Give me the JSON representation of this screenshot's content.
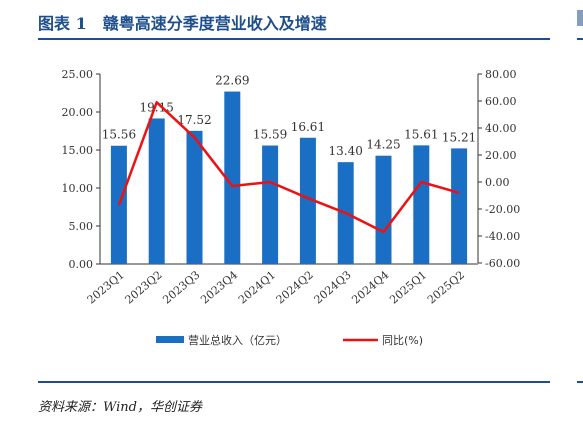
{
  "header": {
    "title": "图表 1　赣粤高速分季度营业收入及增速"
  },
  "footer": {
    "source": "资料来源：Wind，华创证券"
  },
  "colors": {
    "bar": "#1a6fc4",
    "line": "#ee1111",
    "rule": "#1f4e8c",
    "axis": "#333333"
  },
  "chart_data": {
    "type": "bar",
    "categories": [
      "2023Q1",
      "2023Q2",
      "2023Q3",
      "2023Q4",
      "2024Q1",
      "2024Q2",
      "2024Q3",
      "2024Q4",
      "2025Q1",
      "2025Q2"
    ],
    "series": [
      {
        "name": "营业总收入（亿元）",
        "type": "bar",
        "axis": "left",
        "values": [
          15.56,
          19.15,
          17.52,
          22.69,
          15.59,
          16.61,
          13.4,
          14.25,
          15.61,
          15.21
        ],
        "labels": [
          "15.56",
          "19.15",
          "17.52",
          "22.69",
          "15.59",
          "16.61",
          "13.40",
          "14.25",
          "15.61",
          "15.21"
        ]
      },
      {
        "name": "同比(%)",
        "type": "line",
        "axis": "right",
        "values": [
          -17,
          59,
          33,
          -3,
          0,
          -12,
          -23,
          -37,
          0,
          -8
        ]
      }
    ],
    "y_left": {
      "lim": [
        0,
        25
      ],
      "ticks": [
        0,
        5,
        10,
        15,
        20,
        25
      ],
      "tick_labels": [
        "0.00",
        "5.00",
        "10.00",
        "15.00",
        "20.00",
        "25.00"
      ]
    },
    "y_right": {
      "lim": [
        -60,
        80
      ],
      "ticks": [
        -60,
        -40,
        -20,
        0,
        20,
        40,
        60,
        80
      ],
      "tick_labels": [
        "-60.00",
        "-40.00",
        "-20.00",
        "0.00",
        "20.00",
        "40.00",
        "60.00",
        "80.00"
      ]
    },
    "legend_position": "bottom",
    "grid": false
  }
}
